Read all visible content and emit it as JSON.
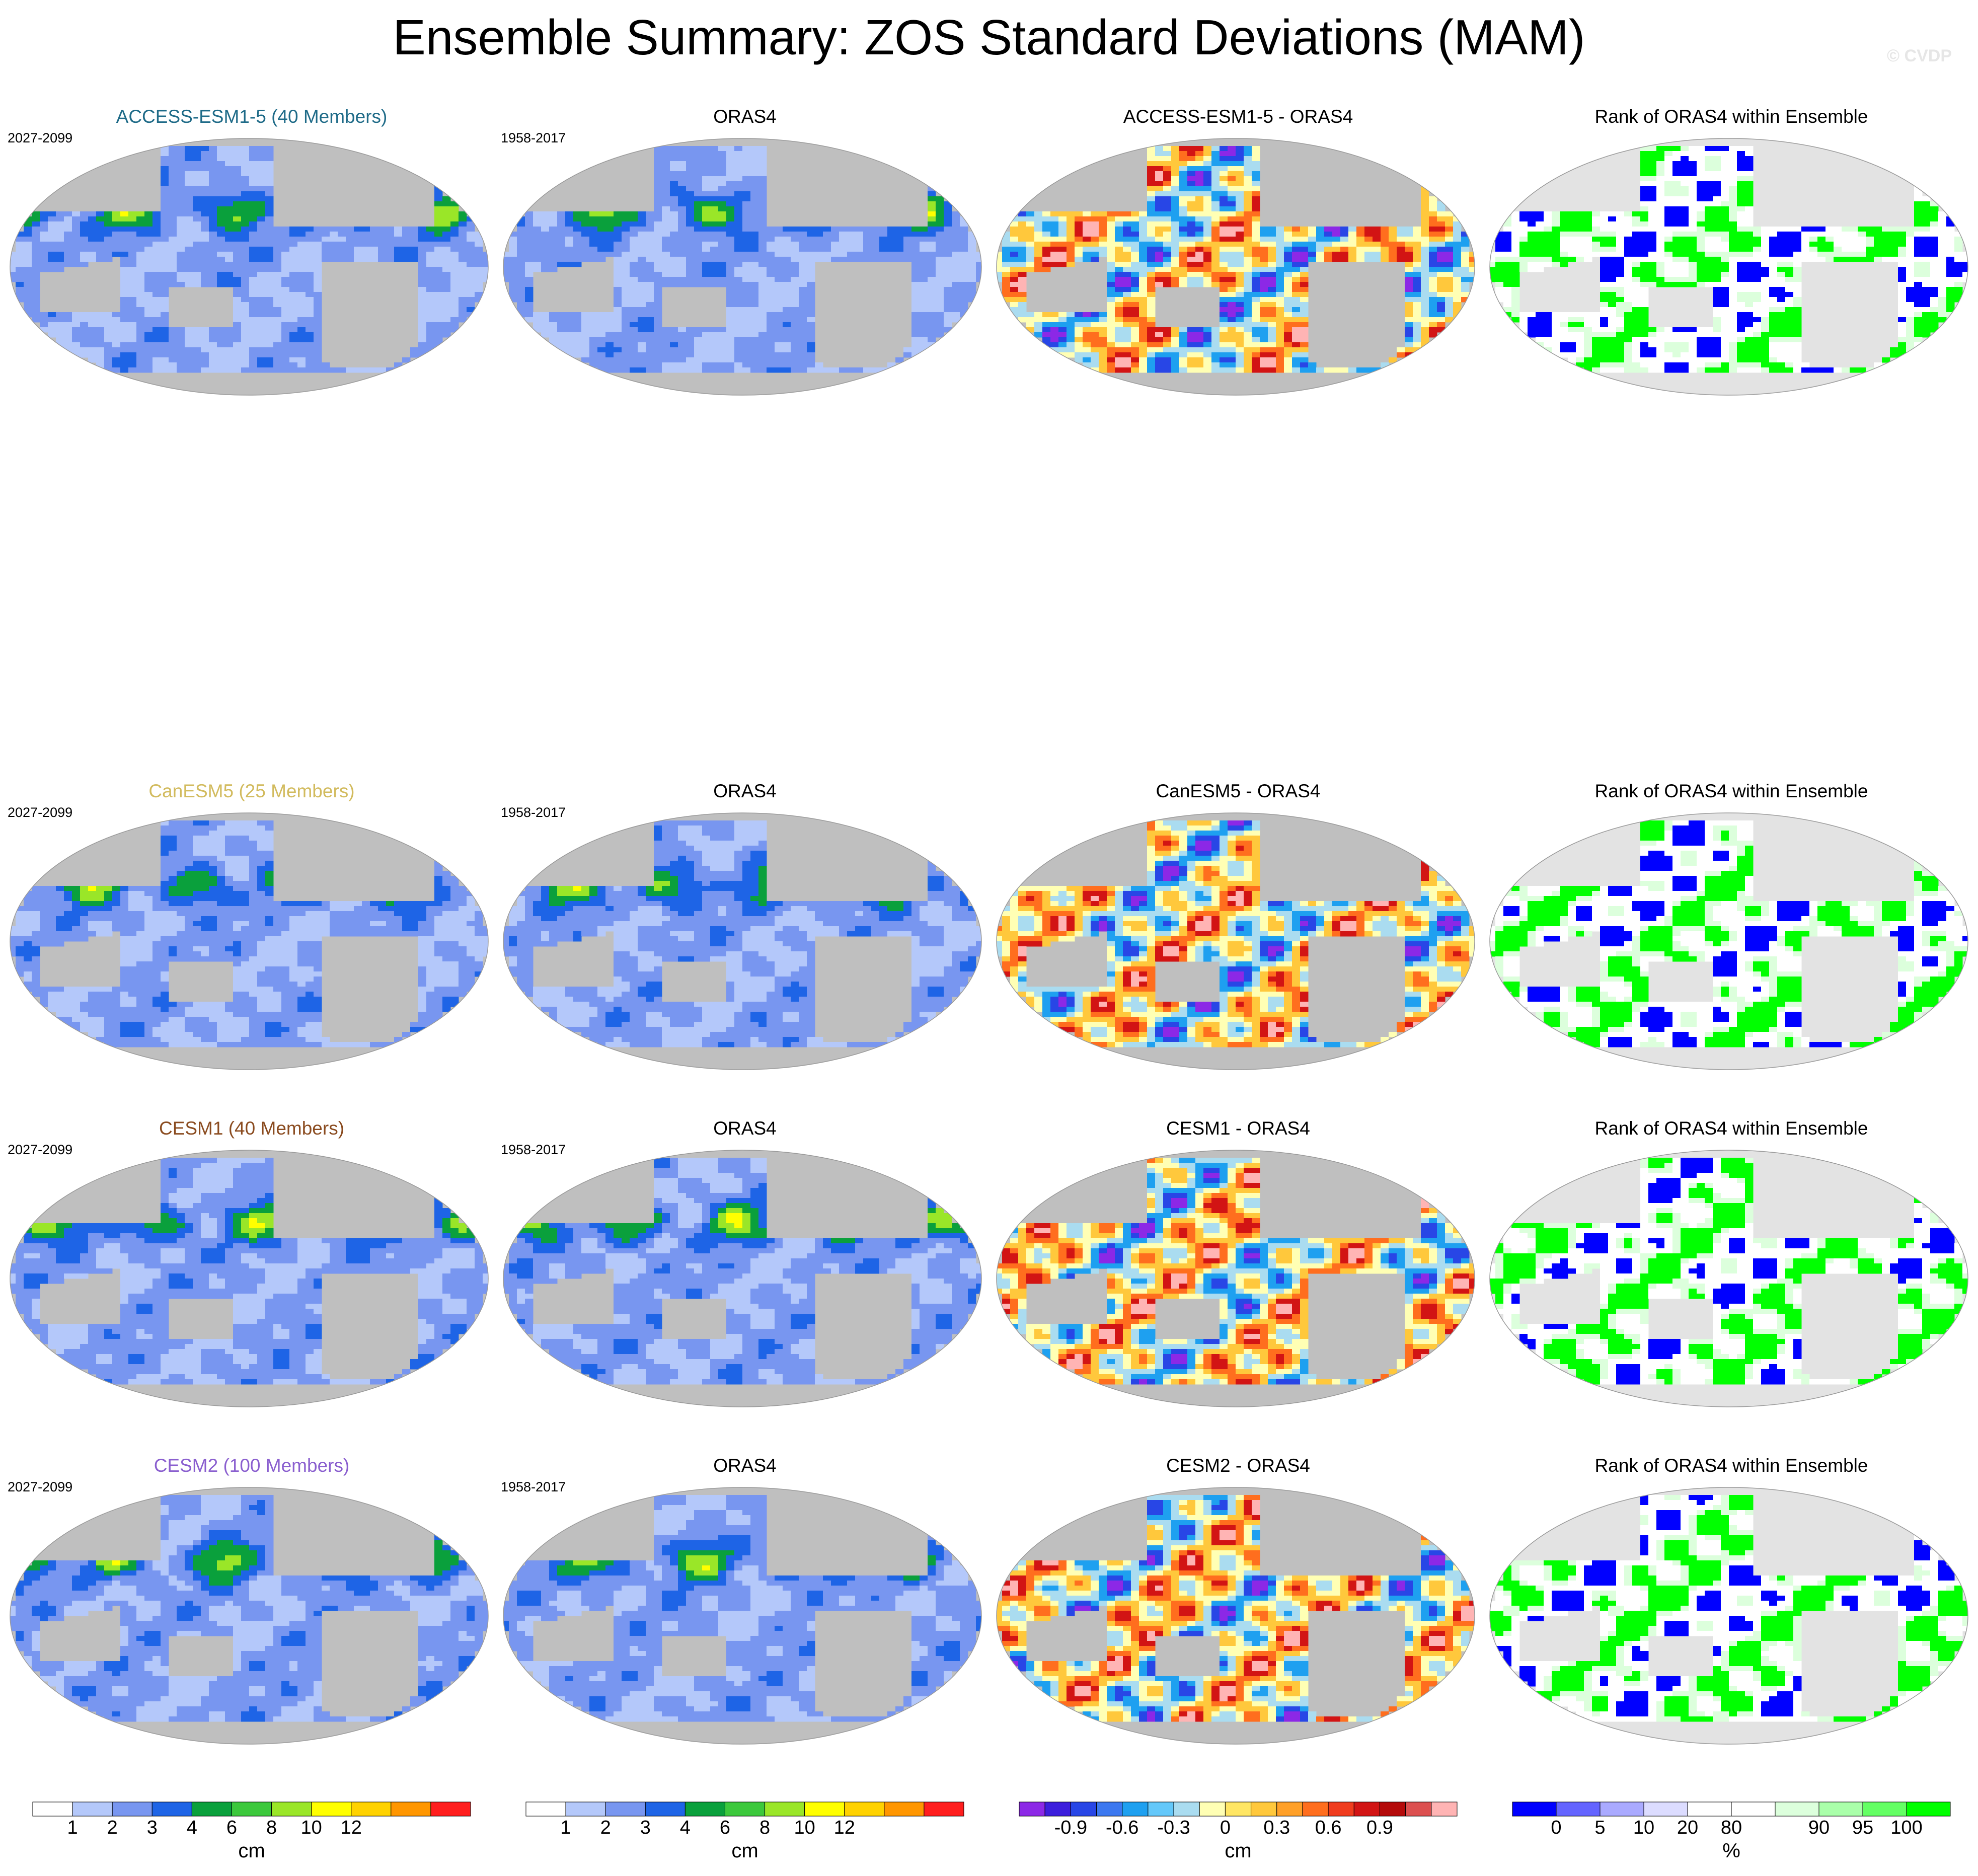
{
  "title": "Ensemble Summary: ZOS Standard Deviations (MAM)",
  "copyright": "© CVDP",
  "rows": [
    {
      "model": {
        "title": "ACCESS-ESM1-5 (40 Members)",
        "color": "#1f6b88",
        "period": "2027-2099"
      },
      "obs": {
        "title": "ORAS4",
        "period": "1958-2017"
      },
      "diff": {
        "title": "ACCESS-ESM1-5 - ORAS4"
      },
      "rank": {
        "title": "Rank of ORAS4 within Ensemble"
      }
    },
    {
      "model": {
        "title": "CanESM5 (25 Members)",
        "color": "#d2bb5e",
        "period": "2027-2099"
      },
      "obs": {
        "title": "ORAS4",
        "period": "1958-2017"
      },
      "diff": {
        "title": "CanESM5 - ORAS4"
      },
      "rank": {
        "title": "Rank of ORAS4 within Ensemble"
      }
    },
    {
      "model": {
        "title": "CESM1 (40 Members)",
        "color": "#8a4b1f",
        "period": "2027-2099"
      },
      "obs": {
        "title": "ORAS4",
        "period": "1958-2017"
      },
      "diff": {
        "title": "CESM1 - ORAS4"
      },
      "rank": {
        "title": "Rank of ORAS4 within Ensemble"
      }
    },
    {
      "model": {
        "title": "CESM2 (100 Members)",
        "color": "#8a5fcf",
        "period": "2027-2099"
      },
      "obs": {
        "title": "ORAS4",
        "period": "1958-2017"
      },
      "diff": {
        "title": "CESM2 - ORAS4"
      },
      "rank": {
        "title": "Rank of ORAS4 within Ensemble"
      }
    }
  ],
  "colorbars": {
    "std": {
      "units": "cm",
      "colors": [
        "#ffffff",
        "#b4c8fa",
        "#7896f0",
        "#1e64e6",
        "#0aa03c",
        "#3cc83c",
        "#9ae628",
        "#ffff00",
        "#ffd200",
        "#ff9600",
        "#ff1e1e"
      ],
      "labels": [
        "1",
        "2",
        "3",
        "4",
        "6",
        "8",
        "10",
        "12"
      ]
    },
    "diff": {
      "units": "cm",
      "colors": [
        "#8c28e6",
        "#3c1edc",
        "#2846e6",
        "#3c78f0",
        "#1ea0f0",
        "#64c8fa",
        "#aadcf0",
        "#ffffb4",
        "#ffe664",
        "#ffc83c",
        "#ffa028",
        "#ff6e1e",
        "#f03c1e",
        "#d21414",
        "#b40a0a",
        "#dc5050",
        "#ffb4b4"
      ],
      "labels": [
        "-0.9",
        "-0.6",
        "-0.3",
        "0",
        "0.3",
        "0.6",
        "0.9"
      ]
    },
    "rank": {
      "units": "%",
      "colors": [
        "#0000ff",
        "#6464ff",
        "#aaaaff",
        "#dcdcff",
        "#ffffff",
        "#ffffff",
        "#dcffdc",
        "#aaffaa",
        "#64ff64",
        "#00ff00"
      ],
      "labels": [
        "0",
        "5",
        "10",
        "20",
        "80",
        "90",
        "95",
        "100"
      ]
    }
  }
}
